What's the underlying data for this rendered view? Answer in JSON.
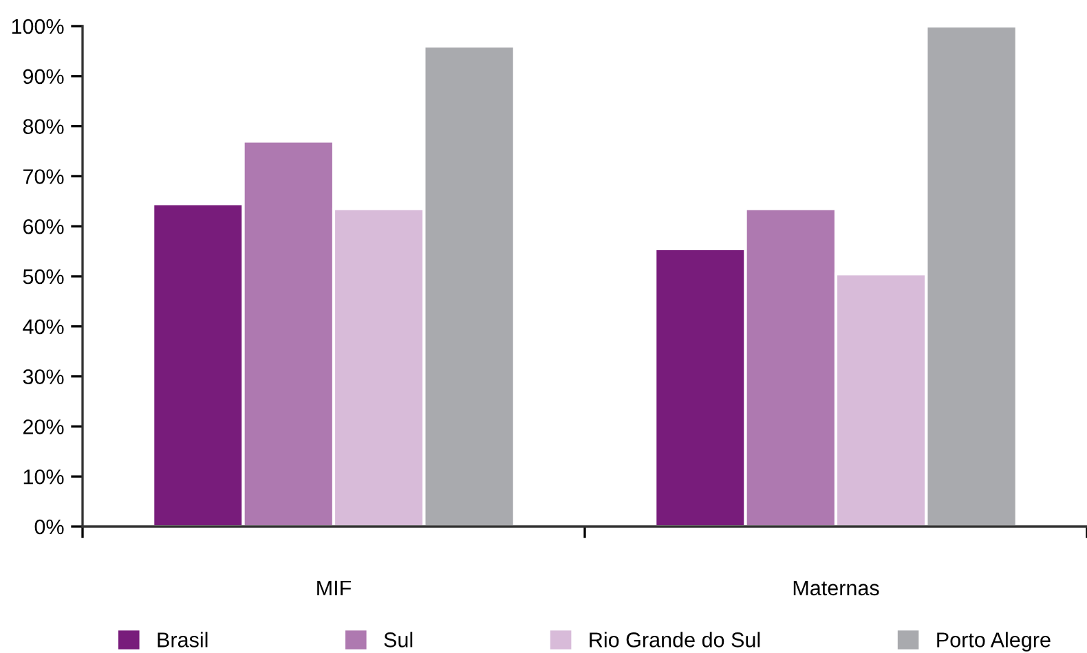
{
  "chart_data": {
    "type": "bar",
    "categories": [
      "MIF",
      "Maternas"
    ],
    "series": [
      {
        "name": "Brasil",
        "color": "#781c7b",
        "values": [
          64.5,
          55.5
        ]
      },
      {
        "name": "Sul",
        "color": "#ae79b0",
        "values": [
          77,
          63.5
        ]
      },
      {
        "name": "Rio Grande do Sul",
        "color": "#d8bbd9",
        "values": [
          63.5,
          50.5
        ]
      },
      {
        "name": "Porto Alegre",
        "color": "#a9aaae",
        "values": [
          96,
          100
        ]
      }
    ],
    "ylim": [
      0,
      100
    ],
    "yticks": [
      {
        "value": 0,
        "label": "0%"
      },
      {
        "value": 10,
        "label": "10%"
      },
      {
        "value": 20,
        "label": "20%"
      },
      {
        "value": 30,
        "label": "30%"
      },
      {
        "value": 40,
        "label": "40%"
      },
      {
        "value": 50,
        "label": "50%"
      },
      {
        "value": 60,
        "label": "60%"
      },
      {
        "value": 70,
        "label": "70%"
      },
      {
        "value": 80,
        "label": "80%"
      },
      {
        "value": 90,
        "label": "90%"
      },
      {
        "value": 100,
        "label": "100%"
      }
    ],
    "grid": false,
    "legend": "bottom"
  }
}
